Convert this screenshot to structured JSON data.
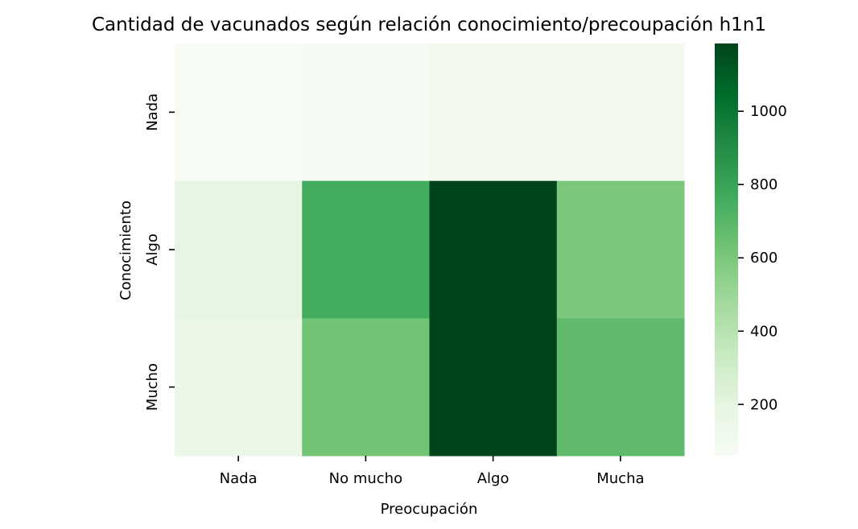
{
  "chart_data": {
    "type": "heatmap",
    "title": "Cantidad de vacunados según relación conocimiento/precoupación h1n1",
    "xlabel": "Preocupación",
    "ylabel": "Conocimiento",
    "x_categories": [
      "Nada",
      "No mucho",
      "Algo",
      "Mucha"
    ],
    "y_categories": [
      "Nada",
      "Algo",
      "Mucho"
    ],
    "values": [
      [
        60,
        80,
        100,
        100
      ],
      [
        190,
        760,
        1185,
        600
      ],
      [
        150,
        630,
        1185,
        680
      ]
    ],
    "colorbar": {
      "min": 60,
      "max": 1185,
      "ticks": [
        200,
        400,
        600,
        800,
        1000
      ],
      "colormap": "Greens",
      "colors": [
        "#f7fcf5",
        "#e5f5e0",
        "#c7e9c0",
        "#a1d99b",
        "#74c476",
        "#41ab5d",
        "#238b45",
        "#006d2c",
        "#00441b"
      ]
    },
    "grid": false
  }
}
